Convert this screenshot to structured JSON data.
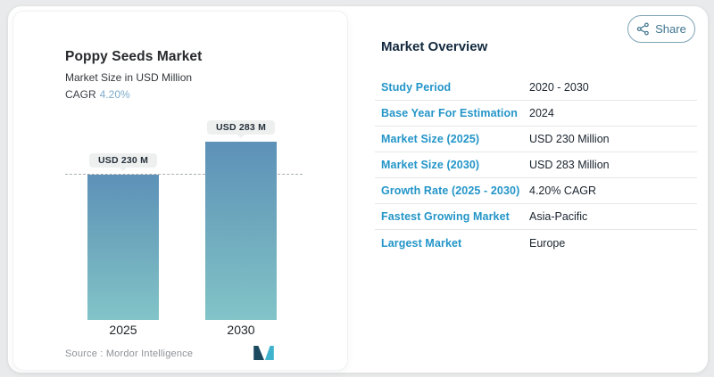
{
  "share": {
    "label": "Share"
  },
  "chart_data": {
    "type": "bar",
    "title": "Poppy Seeds Market",
    "subtitle": "Market Size in USD Million",
    "cagr_label": "CAGR",
    "cagr_value": "4.20%",
    "categories": [
      "2025",
      "2030"
    ],
    "values": [
      230,
      283
    ],
    "bar_labels": [
      "USD 230 M",
      "USD 283 M"
    ],
    "unit": "USD Million",
    "ylim": [
      0,
      283
    ],
    "grid": "single dashed reference line at first bar value",
    "source": "Source :  Mordor Intelligence",
    "colors": {
      "bar_gradient_top": "#5d91b8",
      "bar_gradient_bottom": "#82c4c8",
      "cagr_accent": "#7dabcc",
      "label_pill_bg": "#eef0ef",
      "dashed_line": "#a6adb2"
    }
  },
  "overview": {
    "title": "Market Overview",
    "label_color": "#2395c8",
    "rows": [
      {
        "label": "Study Period",
        "value": "2020 - 2030"
      },
      {
        "label": "Base Year For Estimation",
        "value": "2024"
      },
      {
        "label": "Market Size (2025)",
        "value": "USD 230 Million"
      },
      {
        "label": "Market Size (2030)",
        "value": "USD 283 Million"
      },
      {
        "label": "Growth Rate (2025 - 2030)",
        "value": "4.20% CAGR"
      },
      {
        "label": "Fastest Growing Market",
        "value": "Asia-Pacific"
      },
      {
        "label": "Largest Market",
        "value": "Europe"
      }
    ]
  }
}
